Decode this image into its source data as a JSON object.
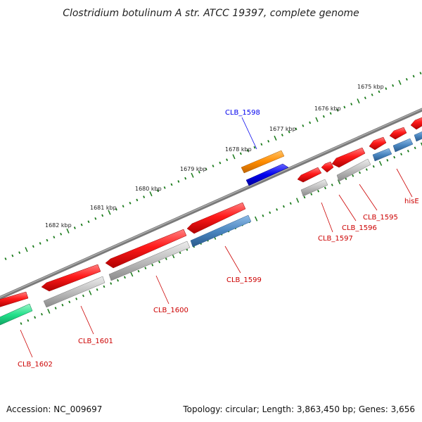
{
  "title": "Clostridium botulinum A str. ATCC 19397, complete genome",
  "ticks": [
    {
      "label": "1675 kbp"
    },
    {
      "label": "1676 kbp"
    },
    {
      "label": "1677 kbp"
    },
    {
      "label": "1678 kbp"
    },
    {
      "label": "1679 kbp"
    },
    {
      "label": "1680 kbp"
    },
    {
      "label": "1681 kbp"
    },
    {
      "label": "1682 kbp"
    }
  ],
  "genes": [
    {
      "name": "CLB_1598",
      "strand": "+",
      "color": "#0000ee"
    },
    {
      "name": "CLB_1602",
      "strand": "-",
      "color": "#cc0000"
    },
    {
      "name": "CLB_1601",
      "strand": "-",
      "color": "#cc0000"
    },
    {
      "name": "CLB_1600",
      "strand": "-",
      "color": "#cc0000"
    },
    {
      "name": "CLB_1599",
      "strand": "-",
      "color": "#cc0000"
    },
    {
      "name": "CLB_1597",
      "strand": "-",
      "color": "#cc0000"
    },
    {
      "name": "CLB_1596",
      "strand": "-",
      "color": "#cc0000"
    },
    {
      "name": "CLB_1595",
      "strand": "-",
      "color": "#cc0000"
    },
    {
      "name": "hisE",
      "strand": "-",
      "color": "#cc0000"
    }
  ],
  "colors": {
    "backbone": "#7a7a7a",
    "cds": "#ff1a1a",
    "gene_gray": "#b4b4b4",
    "gene_steel": "#4a86c0",
    "gene_orange": "#ff8c00",
    "gene_blue": "#0000ee",
    "gene_green": "#22e08a",
    "tick": "#1a7a1a"
  },
  "footer": {
    "accession": "Accession: NC_009697",
    "topology": "Topology: circular; Length: 3,863,450 bp; Genes: 3,656"
  }
}
